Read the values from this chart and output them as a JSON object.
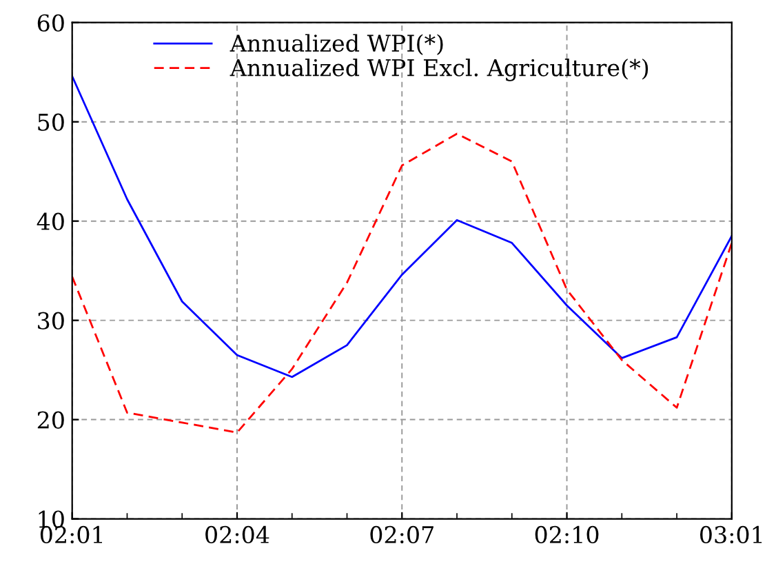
{
  "chart_data": {
    "type": "line",
    "categories": [
      "02:01",
      null,
      null,
      "02:04",
      null,
      null,
      "02:07",
      null,
      null,
      "02:10",
      null,
      null,
      "03:01"
    ],
    "series": [
      {
        "name": "Annualized WPI(*)",
        "color": "#0000ff",
        "line_style": "solid",
        "values": [
          54.6,
          42.2,
          31.9,
          26.5,
          24.3,
          27.5,
          34.6,
          40.1,
          37.8,
          31.5,
          26.2,
          28.3,
          38.5
        ]
      },
      {
        "name": "Annualized WPI Excl. Agriculture(*)",
        "color": "#ff0000",
        "line_style": "dashed",
        "values": [
          34.4,
          20.7,
          19.7,
          18.7,
          25.1,
          33.8,
          45.6,
          48.8,
          46.0,
          33.1,
          26.0,
          21.2,
          37.8
        ]
      }
    ],
    "ylim": [
      10,
      60
    ],
    "yticks": [
      10,
      20,
      30,
      40,
      50,
      60
    ],
    "grid": true,
    "legend": "top",
    "marker": "none"
  }
}
